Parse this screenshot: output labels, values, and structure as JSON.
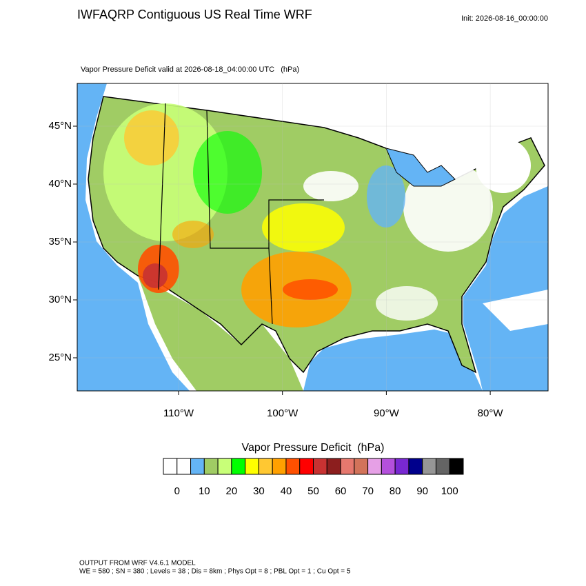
{
  "header": {
    "title": "IWFAQRP Contiguous US Real Time WRF",
    "init": "Init: 2026-08-16_00:00:00"
  },
  "map": {
    "subtitle": "Vapor Pressure Deficit valid at 2026-08-18_04:00:00 UTC   (hPa)",
    "lat_ticks": [
      {
        "value": 45,
        "label": "45°N"
      },
      {
        "value": 40,
        "label": "40°N"
      },
      {
        "value": 35,
        "label": "35°N"
      },
      {
        "value": 30,
        "label": "30°N"
      },
      {
        "value": 25,
        "label": "25°N"
      }
    ],
    "lon_ticks": [
      {
        "value": -110,
        "label": "110°W"
      },
      {
        "value": -100,
        "label": "100°W"
      },
      {
        "value": -90,
        "label": "90°W"
      },
      {
        "value": -80,
        "label": "80°W"
      }
    ]
  },
  "colorbar": {
    "title": "Vapor Pressure Deficit  (hPa)",
    "colors": [
      "#ffffff",
      "#ffffff",
      "#64b4f5",
      "#a0cc64",
      "#c8ff78",
      "#00ff00",
      "#ffff00",
      "#ffc832",
      "#ffa000",
      "#ff5000",
      "#ff0000",
      "#c83232",
      "#8c1e1e",
      "#e6786e",
      "#d2735a",
      "#e6a0e6",
      "#b450dc",
      "#7828d2",
      "#00008c",
      "#969696",
      "#646464",
      "#000000"
    ],
    "ticks": [
      0,
      10,
      20,
      30,
      40,
      50,
      60,
      70,
      80,
      90,
      100
    ]
  },
  "footer": {
    "line1": "OUTPUT FROM WRF V4.6.1 MODEL",
    "line2": "WE = 580 ; SN = 380 ; Levels = 38 ; Dis = 8km ; Phys Opt = 8 ; PBL Opt = 1 ; Cu Opt = 5"
  }
}
